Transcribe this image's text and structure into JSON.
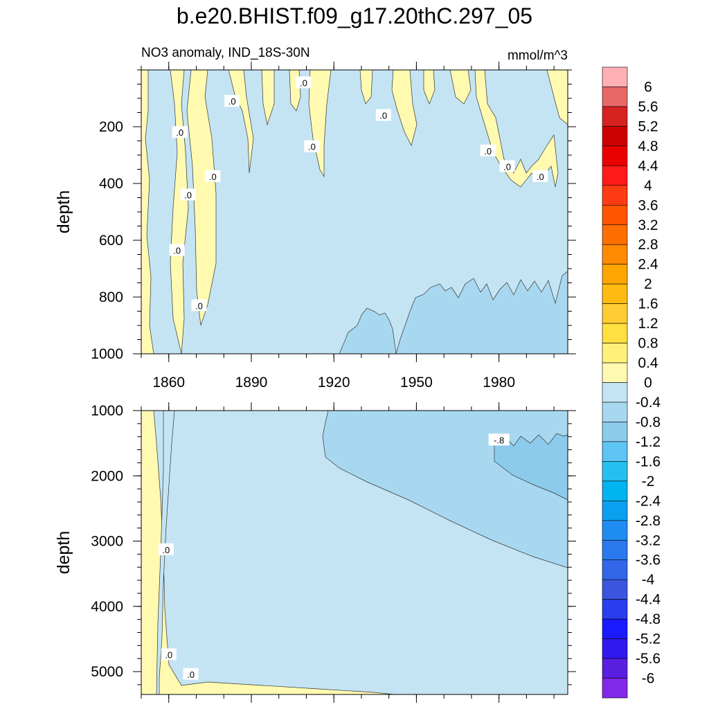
{
  "chart_data": [
    {
      "type": "heatmap",
      "title": "b.e20.BHIST.f09_g17.20thC.297_05",
      "subtitle_left": "NO3 anomaly, IND_18S-30N",
      "subtitle_right": "mmol/m^3",
      "ylabel": "depth",
      "xlim": [
        1850,
        2005
      ],
      "ylim": [
        1000,
        0
      ],
      "xticks": [
        "1860",
        "1890",
        "1920",
        "1950",
        "1980"
      ],
      "yticks": [
        "200",
        "400",
        "600",
        "800",
        "1000"
      ],
      "contour_labels": [
        {
          "text": ".0",
          "x": 1864,
          "y": 220
        },
        {
          "text": ".0",
          "x": 1883,
          "y": 110
        },
        {
          "text": ".0",
          "x": 1909,
          "y": 45
        },
        {
          "text": ".0",
          "x": 1912,
          "y": 270
        },
        {
          "text": ".0",
          "x": 1938,
          "y": 160
        },
        {
          "text": ".0",
          "x": 1863,
          "y": 635
        },
        {
          "text": ".0",
          "x": 1867,
          "y": 440
        },
        {
          "text": ".0",
          "x": 1876,
          "y": 375
        },
        {
          "text": ".0",
          "x": 1871,
          "y": 830
        },
        {
          "text": ".0",
          "x": 1976,
          "y": 285
        },
        {
          "text": ".0",
          "x": 1983,
          "y": 340
        },
        {
          "text": ".0",
          "x": 1995,
          "y": 375
        }
      ]
    },
    {
      "type": "heatmap",
      "ylabel": "depth",
      "xlim": [
        1850,
        2005
      ],
      "ylim": [
        5350,
        1000
      ],
      "yticks": [
        "1000",
        "2000",
        "3000",
        "4000",
        "5000"
      ],
      "contour_labels": [
        {
          "text": ".0",
          "x": 1859,
          "y": 3130
        },
        {
          "text": ".0",
          "x": 1860,
          "y": 4740
        },
        {
          "text": ".0",
          "x": 1868,
          "y": 5040
        },
        {
          "text": "-.8",
          "x": 1980,
          "y": 1450
        }
      ]
    }
  ],
  "colorbar": {
    "labels": [
      "6",
      "5.6",
      "5.2",
      "4.8",
      "4.4",
      "4",
      "3.6",
      "3.2",
      "2.8",
      "2.4",
      "2",
      "1.6",
      "1.2",
      "0.8",
      "0.4",
      "0",
      "-0.4",
      "-0.8",
      "-1.2",
      "-1.6",
      "-2",
      "-2.4",
      "-2.8",
      "-3.2",
      "-3.6",
      "-4",
      "-4.4",
      "-4.8",
      "-5.2",
      "-5.6",
      "-6"
    ],
    "colors": [
      "#ffb0b4",
      "#e86767",
      "#d62121",
      "#cc0000",
      "#ea0000",
      "#ff1a1a",
      "#ff3b14",
      "#ff5500",
      "#ff6e00",
      "#ff8a00",
      "#ffa500",
      "#ffbb11",
      "#ffcc33",
      "#ffe040",
      "#fff07a",
      "#fffab0",
      "#c4e4f4",
      "#a8d8f0",
      "#8ccbec",
      "#5ec4f4",
      "#26bff0",
      "#00b4f0",
      "#0aa0f0",
      "#1e8cf0",
      "#2a78ee",
      "#3266e8",
      "#3a56e0",
      "#2a3ef0",
      "#1a1aff",
      "#3218f0",
      "#5a1ee0",
      "#8228e8"
    ]
  },
  "fills": {
    "positive_low": "#fffab0",
    "negative_low": "#c4e4f4",
    "negative_mid": "#a8d8f0",
    "negative_high": "#8ccbec"
  }
}
